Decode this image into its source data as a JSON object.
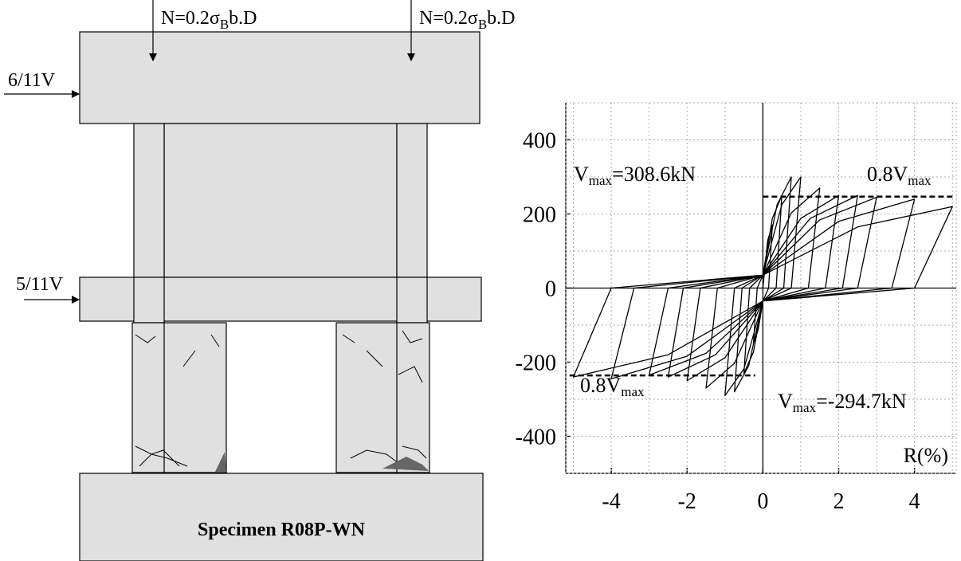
{
  "figure": {
    "load_label": {
      "main": "N=0.2σ",
      "sub": "B",
      "rest": "b.D"
    },
    "lateral_loads": [
      "6/11V",
      "5/11V"
    ],
    "specimen_label": "Specimen R08P-WN"
  },
  "chart_data": {
    "type": "line",
    "x_label": "R(%)",
    "color": "#000000",
    "xlim": [
      -5.2,
      5.1
    ],
    "ylim": [
      -500,
      500
    ],
    "xticks": [
      -4,
      -2,
      0,
      2,
      4
    ],
    "yticks": [
      -400,
      -200,
      0,
      200,
      400
    ],
    "grid": true,
    "xgrid": [
      -5,
      -4,
      -3,
      -2,
      -1,
      1,
      2,
      3,
      4,
      5
    ],
    "ygrid": [
      -400,
      -300,
      -200,
      -100,
      100,
      200,
      300,
      400
    ],
    "x": [
      0,
      0.125,
      0.25,
      0.15,
      0,
      -0.125,
      -0.25,
      -0.15,
      0,
      0.25,
      0.5,
      0.35,
      0,
      -0.25,
      -0.5,
      -0.35,
      0,
      0.375,
      0.75,
      0.55,
      0,
      -0.375,
      -0.75,
      -0.55,
      0,
      0.5,
      1,
      0.75,
      0,
      -0.5,
      -1,
      -0.75,
      0,
      0.75,
      1.5,
      1.2,
      0,
      -0.75,
      -1.5,
      -1.2,
      0,
      1,
      2,
      1.65,
      0,
      -1,
      -2,
      -1.65,
      0,
      1.25,
      2.5,
      2.1,
      0,
      -1.25,
      -2.5,
      -2.1,
      0,
      1.5,
      3,
      2.5,
      0,
      -1.5,
      -3,
      -2.5,
      0,
      2,
      4,
      3.4,
      0,
      -2,
      -4,
      -3.4,
      0,
      2.5,
      5,
      4,
      0,
      -2.5,
      -5,
      -4,
      0
    ],
    "values": [
      0,
      128,
      170,
      0,
      -35,
      -113,
      -150,
      0,
      35,
      188,
      250,
      0,
      -35,
      -173,
      -230,
      0,
      35,
      225,
      300,
      0,
      -35,
      -210,
      -280,
      0,
      35,
      225,
      300,
      0,
      -35,
      -218,
      -290,
      0,
      35,
      203,
      270,
      0,
      -35,
      -203,
      -270,
      0,
      35,
      188,
      250,
      0,
      -35,
      -188,
      -250,
      0,
      35,
      188,
      250,
      0,
      -35,
      -180,
      -240,
      0,
      35,
      184,
      245,
      0,
      -35,
      -176,
      -235,
      0,
      35,
      180,
      240,
      0,
      -35,
      -184,
      -245,
      0,
      35,
      165,
      220,
      0,
      -35,
      -180,
      -240,
      0,
      35
    ],
    "reference_lines": [
      {
        "value": 246.9,
        "from": 0,
        "to": 5
      },
      {
        "value": -235.8,
        "from": -5.1,
        "to": -0.2
      }
    ],
    "annotations": [
      {
        "main": "V",
        "sub": "max",
        "rest": "=308.6kN"
      },
      {
        "main": "0.8V",
        "sub": "max"
      },
      {
        "main": "0.8V",
        "sub": "max"
      },
      {
        "main": "V",
        "sub": "max",
        "rest": "=-294.7kN"
      }
    ]
  }
}
